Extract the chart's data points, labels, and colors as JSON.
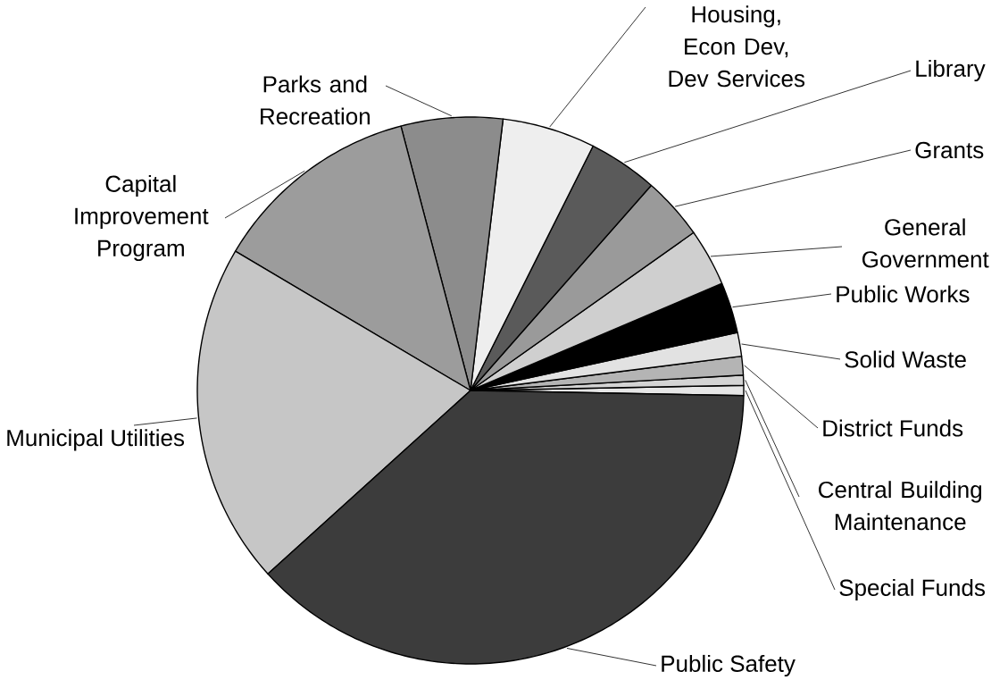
{
  "chart_data": {
    "type": "pie",
    "categories": [
      "Special Funds",
      "Central Building Maintenance",
      "District Funds",
      "Solid Waste",
      "Public Works",
      "General Government",
      "Grants",
      "Library",
      "Housing, Econ Dev, Dev Services",
      "Parks and Recreation",
      "Capital Improvement Program",
      "Municipal Utilities",
      "Public Safety"
    ],
    "values": [
      0.6,
      0.6,
      1.1,
      1.4,
      3.0,
      3.4,
      3.7,
      4.1,
      5.5,
      6.0,
      12.4,
      20.2,
      38.0
    ],
    "colors": [
      "#e6e6e6",
      "#d4d4d4",
      "#b4b4b4",
      "#e2e2e2",
      "#000000",
      "#cfcfcf",
      "#9a9a9a",
      "#5a5a5a",
      "#eeeeee",
      "#8c8c8c",
      "#9c9c9c",
      "#c6c6c6",
      "#3c3c3c"
    ]
  }
}
